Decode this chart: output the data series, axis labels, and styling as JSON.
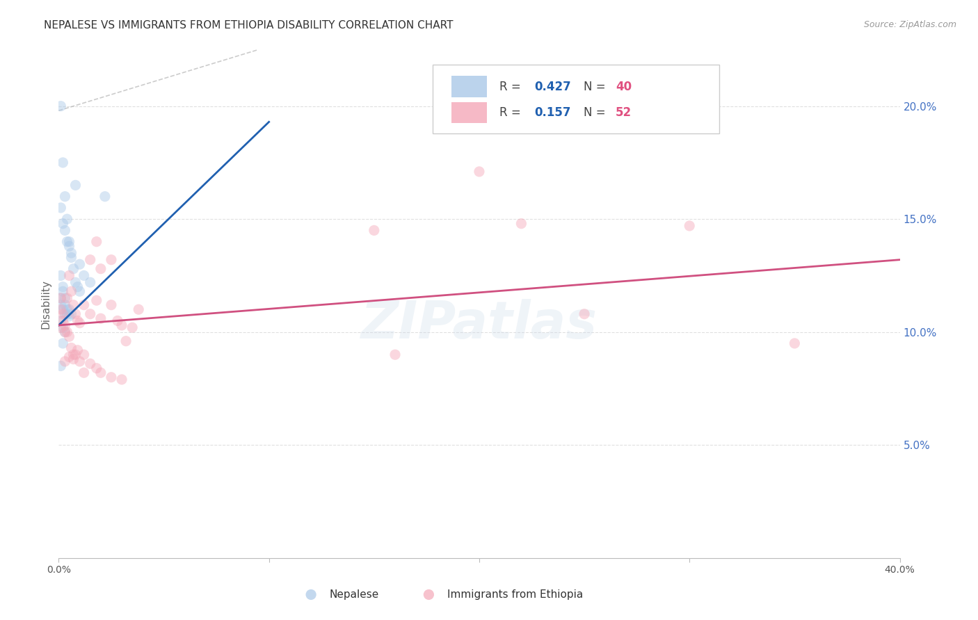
{
  "title": "NEPALESE VS IMMIGRANTS FROM ETHIOPIA DISABILITY CORRELATION CHART",
  "source": "Source: ZipAtlas.com",
  "ylabel": "Disability",
  "watermark": "ZIPatlas",
  "blue_color": "#6baed6",
  "pink_color": "#f4a8b8",
  "blue_line_color": "#2060b0",
  "pink_line_color": "#d05080",
  "blue_scatter_color": "#aac8e8",
  "pink_scatter_color": "#f4a8b8",
  "nepalese": {
    "name": "Nepalese",
    "R": 0.427,
    "N": 40,
    "x": [
      0.001,
      0.002,
      0.003,
      0.004,
      0.005,
      0.006,
      0.008,
      0.01,
      0.012,
      0.015,
      0.001,
      0.002,
      0.003,
      0.004,
      0.005,
      0.006,
      0.007,
      0.008,
      0.009,
      0.01,
      0.001,
      0.002,
      0.002,
      0.003,
      0.003,
      0.004,
      0.004,
      0.005,
      0.005,
      0.006,
      0.001,
      0.001,
      0.002,
      0.003,
      0.022,
      0.001,
      0.002,
      0.003,
      0.001,
      0.002
    ],
    "y": [
      0.2,
      0.175,
      0.16,
      0.15,
      0.14,
      0.135,
      0.165,
      0.13,
      0.125,
      0.122,
      0.155,
      0.148,
      0.145,
      0.14,
      0.138,
      0.133,
      0.128,
      0.122,
      0.12,
      0.118,
      0.125,
      0.12,
      0.118,
      0.115,
      0.112,
      0.11,
      0.108,
      0.11,
      0.107,
      0.108,
      0.115,
      0.112,
      0.11,
      0.108,
      0.16,
      0.105,
      0.102,
      0.1,
      0.085,
      0.095
    ]
  },
  "ethiopia": {
    "name": "Immigrants from Ethiopia",
    "R": 0.157,
    "N": 52,
    "x": [
      0.001,
      0.002,
      0.003,
      0.004,
      0.005,
      0.006,
      0.007,
      0.008,
      0.009,
      0.01,
      0.012,
      0.015,
      0.018,
      0.02,
      0.025,
      0.028,
      0.03,
      0.032,
      0.035,
      0.038,
      0.001,
      0.002,
      0.003,
      0.004,
      0.005,
      0.006,
      0.007,
      0.008,
      0.01,
      0.012,
      0.015,
      0.018,
      0.02,
      0.025,
      0.03,
      0.22,
      0.3,
      0.001,
      0.003,
      0.005,
      0.007,
      0.009,
      0.012,
      0.015,
      0.018,
      0.02,
      0.025,
      0.15,
      0.2,
      0.16,
      0.25,
      0.35
    ],
    "y": [
      0.11,
      0.105,
      0.1,
      0.115,
      0.125,
      0.118,
      0.112,
      0.108,
      0.105,
      0.104,
      0.112,
      0.108,
      0.114,
      0.106,
      0.112,
      0.105,
      0.103,
      0.096,
      0.102,
      0.11,
      0.115,
      0.108,
      0.103,
      0.1,
      0.098,
      0.093,
      0.088,
      0.09,
      0.087,
      0.082,
      0.086,
      0.084,
      0.082,
      0.08,
      0.079,
      0.148,
      0.147,
      0.102,
      0.087,
      0.089,
      0.09,
      0.092,
      0.09,
      0.132,
      0.14,
      0.128,
      0.132,
      0.145,
      0.171,
      0.09,
      0.108,
      0.095
    ]
  },
  "blue_line": {
    "x0": 0.0,
    "y0": 0.103,
    "x1": 0.1,
    "y1": 0.193
  },
  "pink_line": {
    "x0": 0.0,
    "y0": 0.103,
    "x1": 0.4,
    "y1": 0.132
  },
  "dash_line": {
    "x0": 0.0,
    "y0": 0.198,
    "x1": 0.095,
    "y1": 0.225
  },
  "xlim": [
    0.0,
    0.4
  ],
  "ylim": [
    0.0,
    0.225
  ],
  "yticks": [
    0.05,
    0.1,
    0.15,
    0.2
  ],
  "ytick_labels": [
    "5.0%",
    "10.0%",
    "15.0%",
    "20.0%"
  ],
  "xtick_positions": [
    0.0,
    0.1,
    0.2,
    0.3,
    0.4
  ],
  "xtick_labels": [
    "0.0%",
    "",
    "",
    "",
    "40.0%"
  ],
  "grid_color": "#dddddd",
  "bg_color": "#ffffff",
  "title_color": "#333333",
  "ylabel_color": "#666666",
  "axis_label_color": "#4472c4",
  "source_color": "#999999",
  "scatter_size": 120,
  "scatter_alpha": 0.45,
  "line_width": 2.0,
  "title_fontsize": 11,
  "source_fontsize": 9
}
